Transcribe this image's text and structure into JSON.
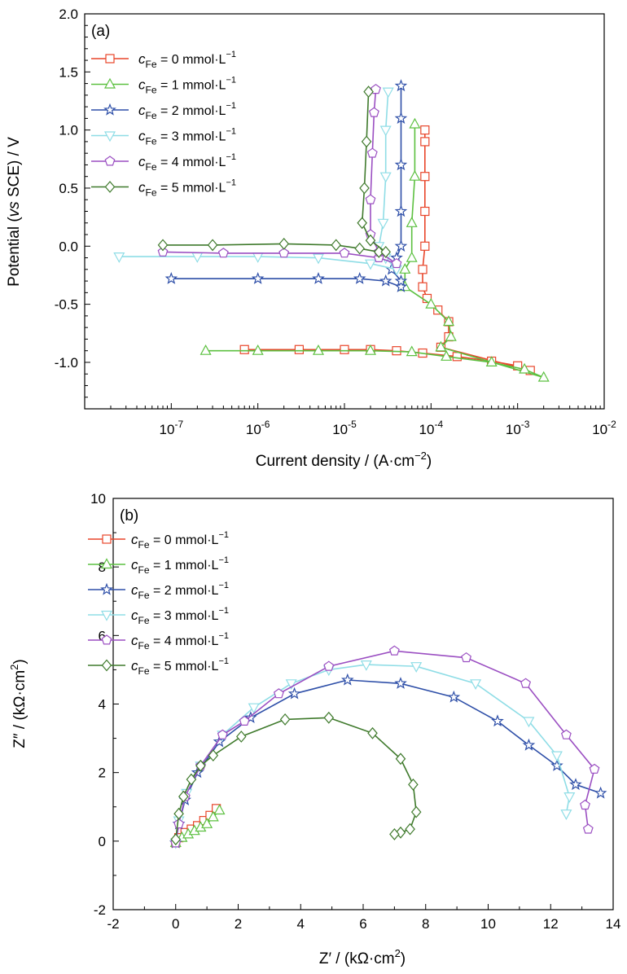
{
  "chart_data": [
    {
      "panel": "(a)",
      "type": "line",
      "xlabel": "Current density / (A·cm⁻²)",
      "ylabel": "Potential (vs SCE) / V",
      "xscale": "log",
      "xlim": [
        1e-08,
        0.01
      ],
      "ylim": [
        -1.4,
        2.0
      ],
      "yticks": [
        "-1.0",
        "-0.5",
        "0.0",
        "0.5",
        "1.0",
        "1.5",
        "2.0"
      ],
      "ytick_values": [
        -1.0,
        -0.5,
        0.0,
        0.5,
        1.0,
        1.5,
        2.0
      ],
      "xtick_exponents": [
        "-7",
        "-6",
        "-5",
        "-4",
        "-3",
        "-2"
      ],
      "legend_position": "top-left",
      "grid": false,
      "series": [
        {
          "name": "cFe = 0 mmol·L−1",
          "color": "#e8452a",
          "marker": "square",
          "points": [
            [
              7e-07,
              -0.89
            ],
            [
              3e-06,
              -0.89
            ],
            [
              1e-05,
              -0.89
            ],
            [
              2e-05,
              -0.89
            ],
            [
              4e-05,
              -0.9
            ],
            [
              8e-05,
              -0.92
            ],
            [
              0.0002,
              -0.95
            ],
            [
              0.0005,
              -0.99
            ],
            [
              0.001,
              -1.03
            ],
            [
              0.0014,
              -1.07
            ],
            [
              0.00013,
              -0.87
            ],
            [
              0.00016,
              -0.78
            ],
            [
              0.00016,
              -0.65
            ],
            [
              0.00012,
              -0.55
            ],
            [
              9e-05,
              -0.45
            ],
            [
              8e-05,
              -0.35
            ],
            [
              8e-05,
              -0.2
            ],
            [
              8.5e-05,
              0.0
            ],
            [
              8.5e-05,
              0.3
            ],
            [
              8.5e-05,
              0.6
            ],
            [
              8.5e-05,
              0.9
            ],
            [
              8.5e-05,
              1.0
            ]
          ]
        },
        {
          "name": "cFe = 1 mmol·L−1",
          "color": "#5cc040",
          "marker": "triangle-up",
          "points": [
            [
              2.5e-07,
              -0.9
            ],
            [
              1e-06,
              -0.9
            ],
            [
              5e-06,
              -0.9
            ],
            [
              2e-05,
              -0.9
            ],
            [
              6e-05,
              -0.91
            ],
            [
              0.00015,
              -0.95
            ],
            [
              0.0005,
              -1.0
            ],
            [
              0.0012,
              -1.06
            ],
            [
              0.002,
              -1.13
            ],
            [
              0.00013,
              -0.87
            ],
            [
              0.00017,
              -0.78
            ],
            [
              0.00016,
              -0.65
            ],
            [
              0.0001,
              -0.5
            ],
            [
              5e-05,
              -0.35
            ],
            [
              5e-05,
              -0.2
            ],
            [
              6e-05,
              -0.1
            ],
            [
              6e-05,
              0.2
            ],
            [
              6.5e-05,
              0.6
            ],
            [
              6.5e-05,
              1.05
            ]
          ]
        },
        {
          "name": "cFe = 2 mmol·L−1",
          "color": "#2e4fa8",
          "marker": "star",
          "points": [
            [
              1e-07,
              -0.28
            ],
            [
              1e-06,
              -0.28
            ],
            [
              5e-06,
              -0.28
            ],
            [
              1.5e-05,
              -0.28
            ],
            [
              3e-05,
              -0.3
            ],
            [
              4.5e-05,
              -0.35
            ],
            [
              4.5e-05,
              -0.3
            ],
            [
              3.5e-05,
              -0.2
            ],
            [
              4e-05,
              -0.1
            ],
            [
              4.5e-05,
              0.0
            ],
            [
              4.5e-05,
              0.3
            ],
            [
              4.5e-05,
              0.7
            ],
            [
              4.5e-05,
              1.1
            ],
            [
              4.5e-05,
              1.38
            ]
          ]
        },
        {
          "name": "cFe = 3 mmol·L−1",
          "color": "#8fdde6",
          "marker": "triangle-down",
          "points": [
            [
              2.5e-08,
              -0.09
            ],
            [
              2e-07,
              -0.09
            ],
            [
              1e-06,
              -0.09
            ],
            [
              5e-06,
              -0.1
            ],
            [
              2e-05,
              -0.15
            ],
            [
              4e-05,
              -0.2
            ],
            [
              3e-05,
              -0.1
            ],
            [
              2.5e-05,
              0.0
            ],
            [
              2.8e-05,
              0.2
            ],
            [
              3e-05,
              0.6
            ],
            [
              3e-05,
              1.0
            ],
            [
              3.2e-05,
              1.33
            ]
          ]
        },
        {
          "name": "cFe = 4 mmol·L−1",
          "color": "#9b4fc2",
          "marker": "pentagon",
          "points": [
            [
              8e-08,
              -0.05
            ],
            [
              4e-07,
              -0.06
            ],
            [
              2e-06,
              -0.06
            ],
            [
              1e-05,
              -0.06
            ],
            [
              2.5e-05,
              -0.1
            ],
            [
              4e-05,
              -0.15
            ],
            [
              2.5e-05,
              -0.05
            ],
            [
              2e-05,
              0.1
            ],
            [
              2e-05,
              0.4
            ],
            [
              2.1e-05,
              0.8
            ],
            [
              2.2e-05,
              1.15
            ],
            [
              2.3e-05,
              1.35
            ]
          ]
        },
        {
          "name": "cFe = 5 mmol·L−1",
          "color": "#3f7a2c",
          "marker": "diamond",
          "points": [
            [
              8e-08,
              0.01
            ],
            [
              3e-07,
              0.01
            ],
            [
              2e-06,
              0.02
            ],
            [
              8e-06,
              0.01
            ],
            [
              1.5e-05,
              -0.02
            ],
            [
              2.5e-05,
              -0.05
            ],
            [
              3e-05,
              -0.05
            ],
            [
              2e-05,
              0.05
            ],
            [
              1.6e-05,
              0.2
            ],
            [
              1.7e-05,
              0.5
            ],
            [
              1.8e-05,
              0.9
            ],
            [
              1.9e-05,
              1.33
            ]
          ]
        }
      ]
    },
    {
      "panel": "(b)",
      "type": "line",
      "xlabel": "Z′ / (kΩ·cm²)",
      "ylabel": "Z″ / (kΩ·cm²)",
      "xlim": [
        -2,
        14
      ],
      "ylim": [
        -2,
        10
      ],
      "xticks": [
        "-2",
        "0",
        "2",
        "4",
        "6",
        "8",
        "10",
        "12",
        "14"
      ],
      "xtick_values": [
        -2,
        0,
        2,
        4,
        6,
        8,
        10,
        12,
        14
      ],
      "yticks": [
        "-2",
        "0",
        "2",
        "4",
        "6",
        "8",
        "10"
      ],
      "ytick_values": [
        -2,
        0,
        2,
        4,
        6,
        8,
        10
      ],
      "legend_position": "top-left",
      "grid": false,
      "series": [
        {
          "name": "cFe = 0 mmol·L−1",
          "color": "#e8452a",
          "marker": "square",
          "points": [
            [
              0,
              -0.05
            ],
            [
              0.1,
              0.1
            ],
            [
              0.3,
              0.25
            ],
            [
              0.5,
              0.35
            ],
            [
              0.7,
              0.45
            ],
            [
              0.9,
              0.6
            ],
            [
              1.1,
              0.75
            ],
            [
              1.3,
              0.95
            ]
          ]
        },
        {
          "name": "cFe = 1 mmol·L−1",
          "color": "#5cc040",
          "marker": "triangle-up",
          "points": [
            [
              0,
              -0.05
            ],
            [
              0.2,
              0.1
            ],
            [
              0.4,
              0.2
            ],
            [
              0.6,
              0.3
            ],
            [
              0.8,
              0.4
            ],
            [
              1.0,
              0.5
            ],
            [
              1.2,
              0.7
            ],
            [
              1.4,
              0.9
            ]
          ]
        },
        {
          "name": "cFe = 2 mmol·L−1",
          "color": "#2e4fa8",
          "marker": "star",
          "points": [
            [
              0,
              -0.05
            ],
            [
              0.1,
              0.5
            ],
            [
              0.3,
              1.2
            ],
            [
              0.7,
              2.0
            ],
            [
              1.4,
              2.9
            ],
            [
              2.4,
              3.6
            ],
            [
              3.8,
              4.3
            ],
            [
              5.5,
              4.7
            ],
            [
              7.2,
              4.6
            ],
            [
              8.9,
              4.2
            ],
            [
              10.3,
              3.5
            ],
            [
              11.3,
              2.8
            ],
            [
              12.2,
              2.2
            ],
            [
              12.8,
              1.65
            ],
            [
              13.6,
              1.4
            ]
          ]
        },
        {
          "name": "cFe = 3 mmol·L−1",
          "color": "#8fdde6",
          "marker": "triangle-down",
          "points": [
            [
              0,
              -0.05
            ],
            [
              0.1,
              0.6
            ],
            [
              0.35,
              1.4
            ],
            [
              0.8,
              2.2
            ],
            [
              1.5,
              3.1
            ],
            [
              2.5,
              3.9
            ],
            [
              3.7,
              4.6
            ],
            [
              4.9,
              5.0
            ],
            [
              6.1,
              5.15
            ],
            [
              7.7,
              5.1
            ],
            [
              9.6,
              4.6
            ],
            [
              11.3,
              3.5
            ],
            [
              12.2,
              2.5
            ],
            [
              12.6,
              1.3
            ],
            [
              12.5,
              0.8
            ]
          ]
        },
        {
          "name": "cFe = 4 mmol·L−1",
          "color": "#9b4fc2",
          "marker": "pentagon",
          "points": [
            [
              0,
              -0.05
            ],
            [
              0.1,
              0.5
            ],
            [
              0.3,
              1.3
            ],
            [
              0.8,
              2.2
            ],
            [
              1.5,
              3.1
            ],
            [
              2.2,
              3.5
            ],
            [
              3.3,
              4.3
            ],
            [
              4.9,
              5.1
            ],
            [
              7.0,
              5.55
            ],
            [
              9.3,
              5.35
            ],
            [
              11.2,
              4.6
            ],
            [
              12.5,
              3.1
            ],
            [
              13.4,
              2.1
            ],
            [
              13.1,
              1.05
            ],
            [
              13.2,
              0.35
            ]
          ]
        },
        {
          "name": "cFe = 5 mmol·L−1",
          "color": "#3f7a2c",
          "marker": "diamond",
          "points": [
            [
              0,
              0.05
            ],
            [
              0.1,
              0.8
            ],
            [
              0.25,
              1.3
            ],
            [
              0.5,
              1.8
            ],
            [
              0.8,
              2.2
            ],
            [
              1.2,
              2.5
            ],
            [
              2.1,
              3.05
            ],
            [
              3.5,
              3.55
            ],
            [
              4.9,
              3.6
            ],
            [
              6.3,
              3.15
            ],
            [
              7.2,
              2.4
            ],
            [
              7.6,
              1.65
            ],
            [
              7.7,
              0.85
            ],
            [
              7.5,
              0.35
            ],
            [
              7.2,
              0.25
            ],
            [
              7.0,
              0.2
            ]
          ]
        }
      ]
    }
  ],
  "figure": {
    "panel_a_label": "(a)",
    "panel_b_label": "(b)",
    "panel_a_xlabel": "Current density / (A·cm",
    "panel_a_xlabel_sup": "−2",
    "panel_a_xlabel_end": ")",
    "panel_a_ylabel_pre": "Potential (",
    "panel_a_ylabel_it": "vs",
    "panel_a_ylabel_post": " SCE) / V",
    "panel_b_xlabel_pre": "Z′ / (kΩ·cm",
    "panel_b_xlabel_sup": "2",
    "panel_b_xlabel_end": ")",
    "panel_b_ylabel_pre": "Z″ / (kΩ·cm",
    "panel_b_ylabel_sup": "2",
    "panel_b_ylabel_end": ")",
    "log_base": "10",
    "legend_c": "c",
    "legend_sub": "Fe",
    "legend_vals": [
      " = 0 mmol·L",
      " = 1 mmol·L",
      " = 2 mmol·L",
      " = 3 mmol·L",
      " = 4 mmol·L",
      " = 5 mmol·L"
    ],
    "legend_sup": "−1"
  }
}
